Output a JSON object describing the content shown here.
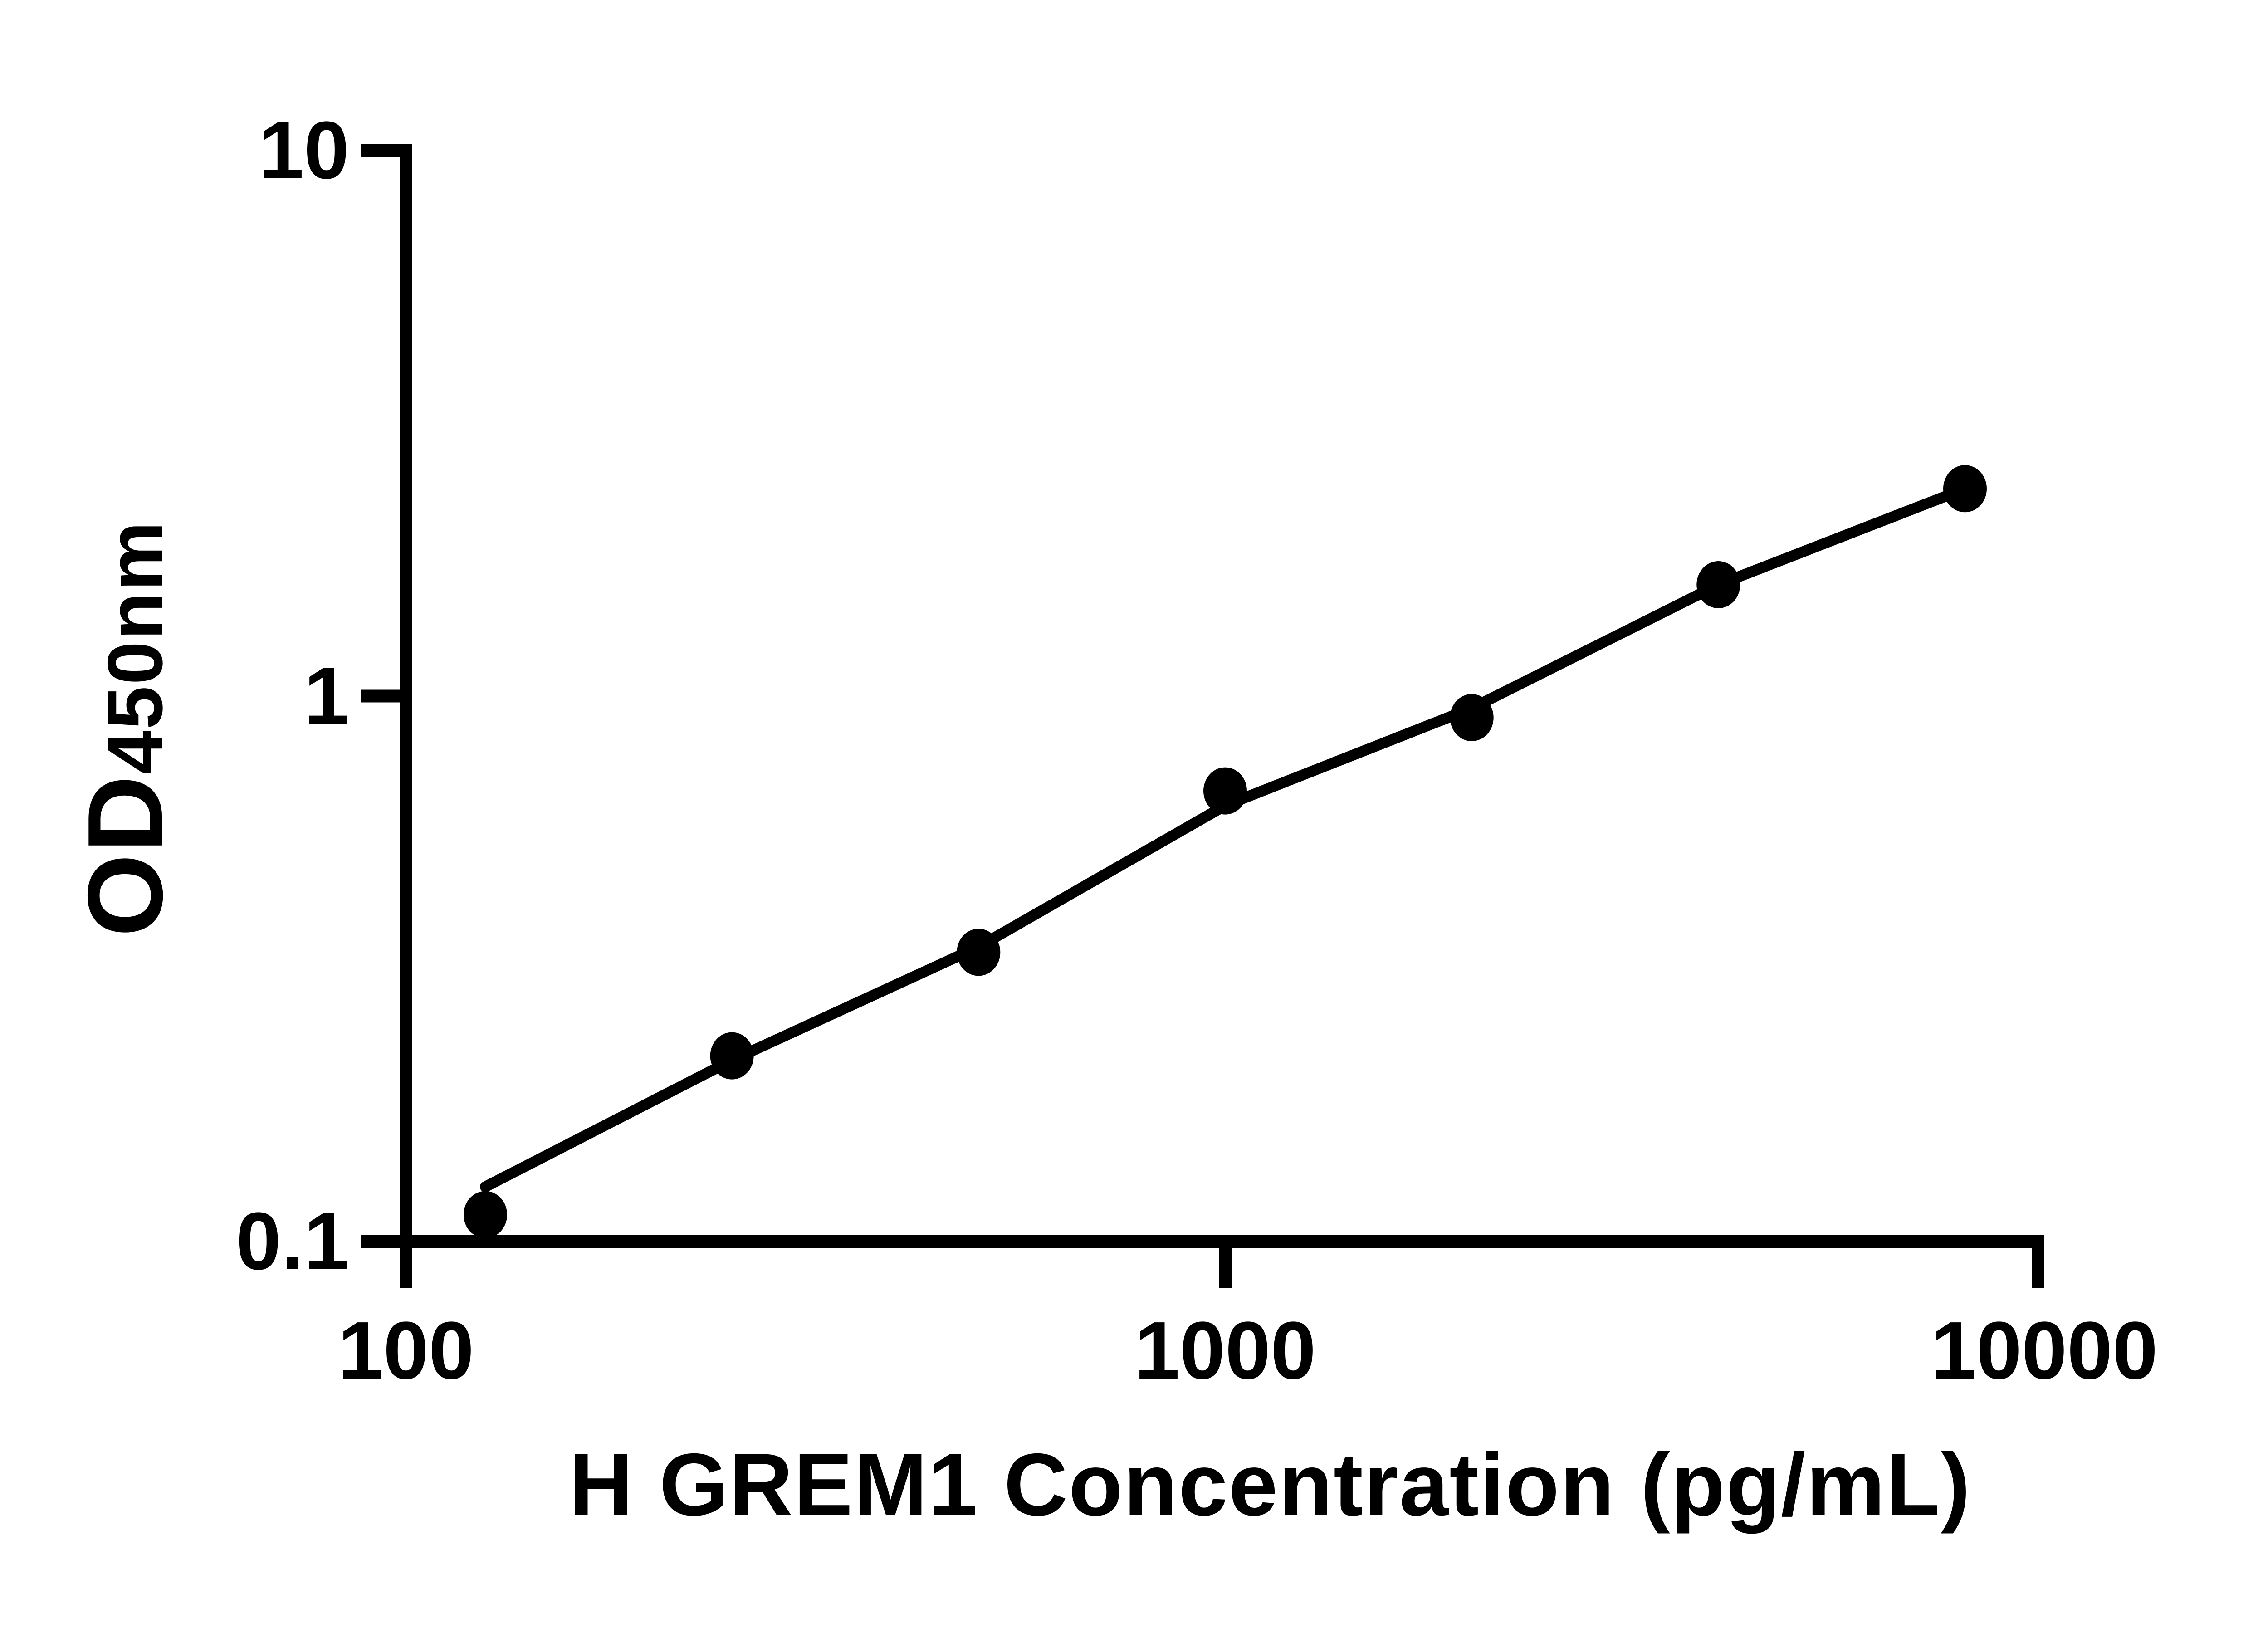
{
  "figure": {
    "background_color": "#ffffff",
    "ink_color": "#000000"
  },
  "chart_data": {
    "type": "scatter",
    "title": "",
    "xlabel": "H GREM1 Concentration (pg/mL)",
    "ylabel_main": "OD",
    "ylabel_sub": "450nm",
    "x_scale": "log",
    "y_scale": "log",
    "xlim": [
      100,
      10000
    ],
    "ylim": [
      0.1,
      10
    ],
    "grid": "off",
    "legend": "none",
    "x_ticks": [
      {
        "value": 100,
        "label": "100"
      },
      {
        "value": 1000,
        "label": "1000"
      },
      {
        "value": 10000,
        "label": "10000"
      }
    ],
    "y_ticks": [
      {
        "value": 10,
        "label": "10"
      },
      {
        "value": 1,
        "label": "1"
      },
      {
        "value": 0.1,
        "label": "0.1"
      }
    ],
    "series": [
      {
        "name": "standard-points",
        "marker": "filled-circle",
        "color": "#000000",
        "x": [
          125,
          250,
          500,
          1000,
          2000,
          4000,
          8000
        ],
        "od": [
          0.112,
          0.219,
          0.339,
          0.67,
          0.913,
          1.6,
          2.4
        ]
      }
    ],
    "fit_line": {
      "name": "fitted-curve",
      "color": "#000000",
      "x": [
        125,
        250,
        500,
        1000,
        2000,
        4000,
        8000
      ],
      "od": [
        0.126,
        0.215,
        0.347,
        0.63,
        0.95,
        1.6,
        2.4
      ]
    }
  }
}
